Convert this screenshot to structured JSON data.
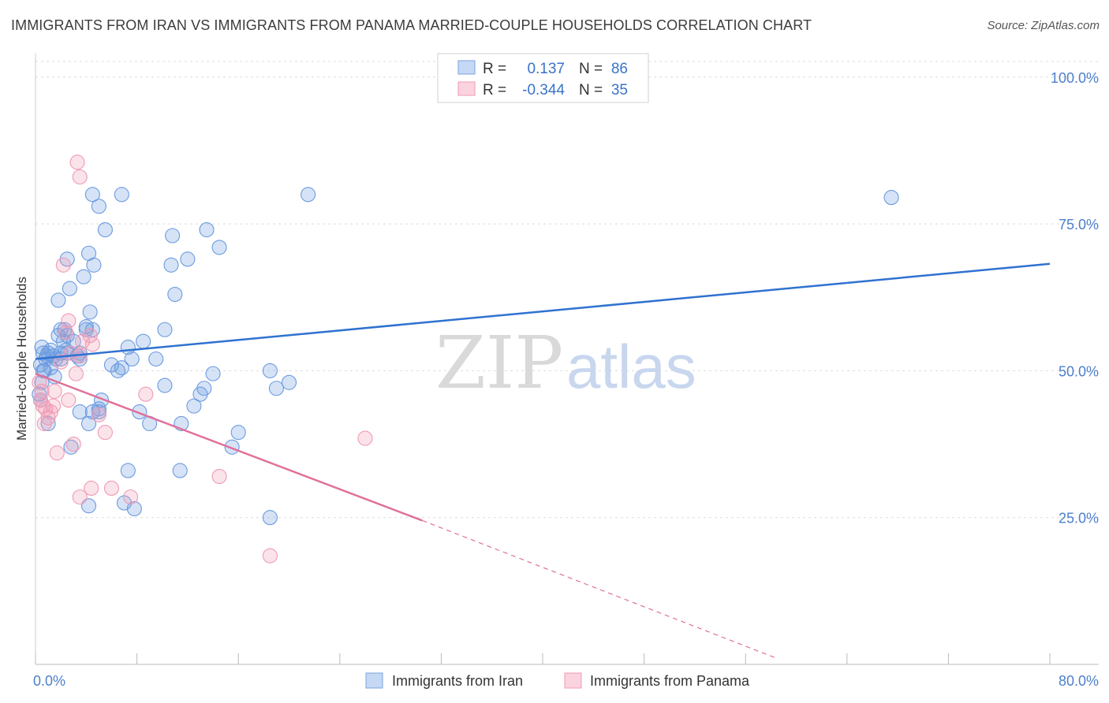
{
  "chart_data": {
    "type": "scatter",
    "title": "IMMIGRANTS FROM IRAN VS IMMIGRANTS FROM PANAMA MARRIED-COUPLE HOUSEHOLDS CORRELATION CHART",
    "source": "Source: ZipAtlas.com",
    "xlabel": "",
    "ylabel": "Married-couple Households",
    "xlim": [
      0,
      80
    ],
    "ylim": [
      0,
      104
    ],
    "x_tick_labels": [
      "0.0%",
      "80.0%"
    ],
    "y_ticks": [
      25,
      50,
      75,
      100
    ],
    "y_tick_labels": [
      "25.0%",
      "50.0%",
      "75.0%",
      "100.0%"
    ],
    "watermark": {
      "zip": "ZIP",
      "atlas": "atlas"
    },
    "colors": {
      "iran": "#6b9be0",
      "panama": "#f09ab5",
      "iran_line": "#2f72d0",
      "panama_line": "#e0709a"
    },
    "stats": [
      {
        "r_label": "R =",
        "r_value": "0.137",
        "n_label": "N =",
        "n_value": "86"
      },
      {
        "r_label": "R =",
        "r_value": "-0.344",
        "n_label": "N =",
        "n_value": "35"
      }
    ],
    "series": [
      {
        "name": "Immigrants from Iran",
        "trend": {
          "x": [
            0,
            80
          ],
          "y": [
            52.0,
            68.2
          ]
        },
        "points": [
          [
            0.5,
            54
          ],
          [
            0.6,
            53
          ],
          [
            0.4,
            51
          ],
          [
            0.8,
            52
          ],
          [
            1.0,
            53
          ],
          [
            1.2,
            53.5
          ],
          [
            1.4,
            52.5
          ],
          [
            0.7,
            50
          ],
          [
            0.5,
            48
          ],
          [
            0.3,
            46
          ],
          [
            0.4,
            45
          ],
          [
            1.0,
            41
          ],
          [
            1.5,
            49
          ],
          [
            1.8,
            56
          ],
          [
            2.0,
            57
          ],
          [
            2.2,
            55
          ],
          [
            2.5,
            56
          ],
          [
            1.8,
            62
          ],
          [
            2.7,
            64
          ],
          [
            2.5,
            69
          ],
          [
            3.8,
            66
          ],
          [
            4.0,
            57
          ],
          [
            4.3,
            60
          ],
          [
            4.0,
            57.5
          ],
          [
            4.5,
            57
          ],
          [
            4.6,
            68
          ],
          [
            4.2,
            70
          ],
          [
            3.5,
            52
          ],
          [
            3.5,
            53
          ],
          [
            3.0,
            55
          ],
          [
            2.5,
            53
          ],
          [
            2.0,
            52
          ],
          [
            2.0,
            53
          ],
          [
            2.8,
            37
          ],
          [
            3.5,
            43
          ],
          [
            4.2,
            41
          ],
          [
            4.5,
            43
          ],
          [
            5.0,
            43
          ],
          [
            5.2,
            45
          ],
          [
            5.5,
            74
          ],
          [
            4.5,
            80
          ],
          [
            5.0,
            78
          ],
          [
            4.2,
            27
          ],
          [
            6.0,
            51
          ],
          [
            6.5,
            50
          ],
          [
            6.8,
            80
          ],
          [
            7.3,
            54
          ],
          [
            7.6,
            52
          ],
          [
            7.3,
            33
          ],
          [
            8.2,
            43
          ],
          [
            8.5,
            55
          ],
          [
            9.0,
            41
          ],
          [
            9.5,
            52
          ],
          [
            10.2,
            57
          ],
          [
            10.2,
            47.5
          ],
          [
            10.7,
            68
          ],
          [
            10.8,
            73
          ],
          [
            11.0,
            63
          ],
          [
            11.5,
            41
          ],
          [
            11.4,
            33
          ],
          [
            12.0,
            69
          ],
          [
            12.5,
            44
          ],
          [
            13.0,
            46
          ],
          [
            13.5,
            74
          ],
          [
            13.3,
            47
          ],
          [
            14.0,
            49.5
          ],
          [
            14.5,
            71
          ],
          [
            15.5,
            37
          ],
          [
            16.0,
            39.5
          ],
          [
            18.5,
            50
          ],
          [
            19.0,
            47
          ],
          [
            20.0,
            48
          ],
          [
            21.5,
            80
          ],
          [
            18.5,
            25
          ],
          [
            67.5,
            79.5
          ],
          [
            7.0,
            27.5
          ],
          [
            7.8,
            26.5
          ],
          [
            0.9,
            52.5
          ],
          [
            1.2,
            50.5
          ],
          [
            2.3,
            57
          ],
          [
            3.3,
            52.5
          ],
          [
            6.8,
            50.5
          ],
          [
            0.6,
            50
          ],
          [
            1.6,
            52
          ],
          [
            2.4,
            53.5
          ],
          [
            5.0,
            43.5
          ]
        ]
      },
      {
        "name": "Immigrants from Panama",
        "trend": {
          "x": [
            0,
            30.5
          ],
          "y": [
            49.5,
            24.5
          ]
        },
        "trend_extension": {
          "x": [
            30.5,
            58.5
          ],
          "y": [
            24.5,
            1.0
          ]
        },
        "points": [
          [
            0.3,
            48
          ],
          [
            0.5,
            46.5
          ],
          [
            0.4,
            45
          ],
          [
            0.6,
            44
          ],
          [
            0.8,
            43.5
          ],
          [
            1.0,
            42
          ],
          [
            0.7,
            41
          ],
          [
            1.2,
            43
          ],
          [
            1.4,
            44
          ],
          [
            1.5,
            46.5
          ],
          [
            1.7,
            36
          ],
          [
            2.0,
            51.5
          ],
          [
            2.2,
            68
          ],
          [
            2.4,
            56.5
          ],
          [
            2.6,
            58.5
          ],
          [
            2.8,
            53
          ],
          [
            2.6,
            45
          ],
          [
            3.0,
            37.5
          ],
          [
            3.2,
            49.5
          ],
          [
            3.5,
            52.5
          ],
          [
            3.7,
            55
          ],
          [
            4.3,
            56
          ],
          [
            4.5,
            54.5
          ],
          [
            5.0,
            42.5
          ],
          [
            5.5,
            39.5
          ],
          [
            3.5,
            28.5
          ],
          [
            4.4,
            30
          ],
          [
            6.0,
            30
          ],
          [
            3.3,
            85.5
          ],
          [
            3.5,
            83
          ],
          [
            8.7,
            46
          ],
          [
            14.5,
            32
          ],
          [
            18.5,
            18.5
          ],
          [
            26.0,
            38.5
          ],
          [
            7.5,
            28.5
          ]
        ]
      }
    ]
  }
}
